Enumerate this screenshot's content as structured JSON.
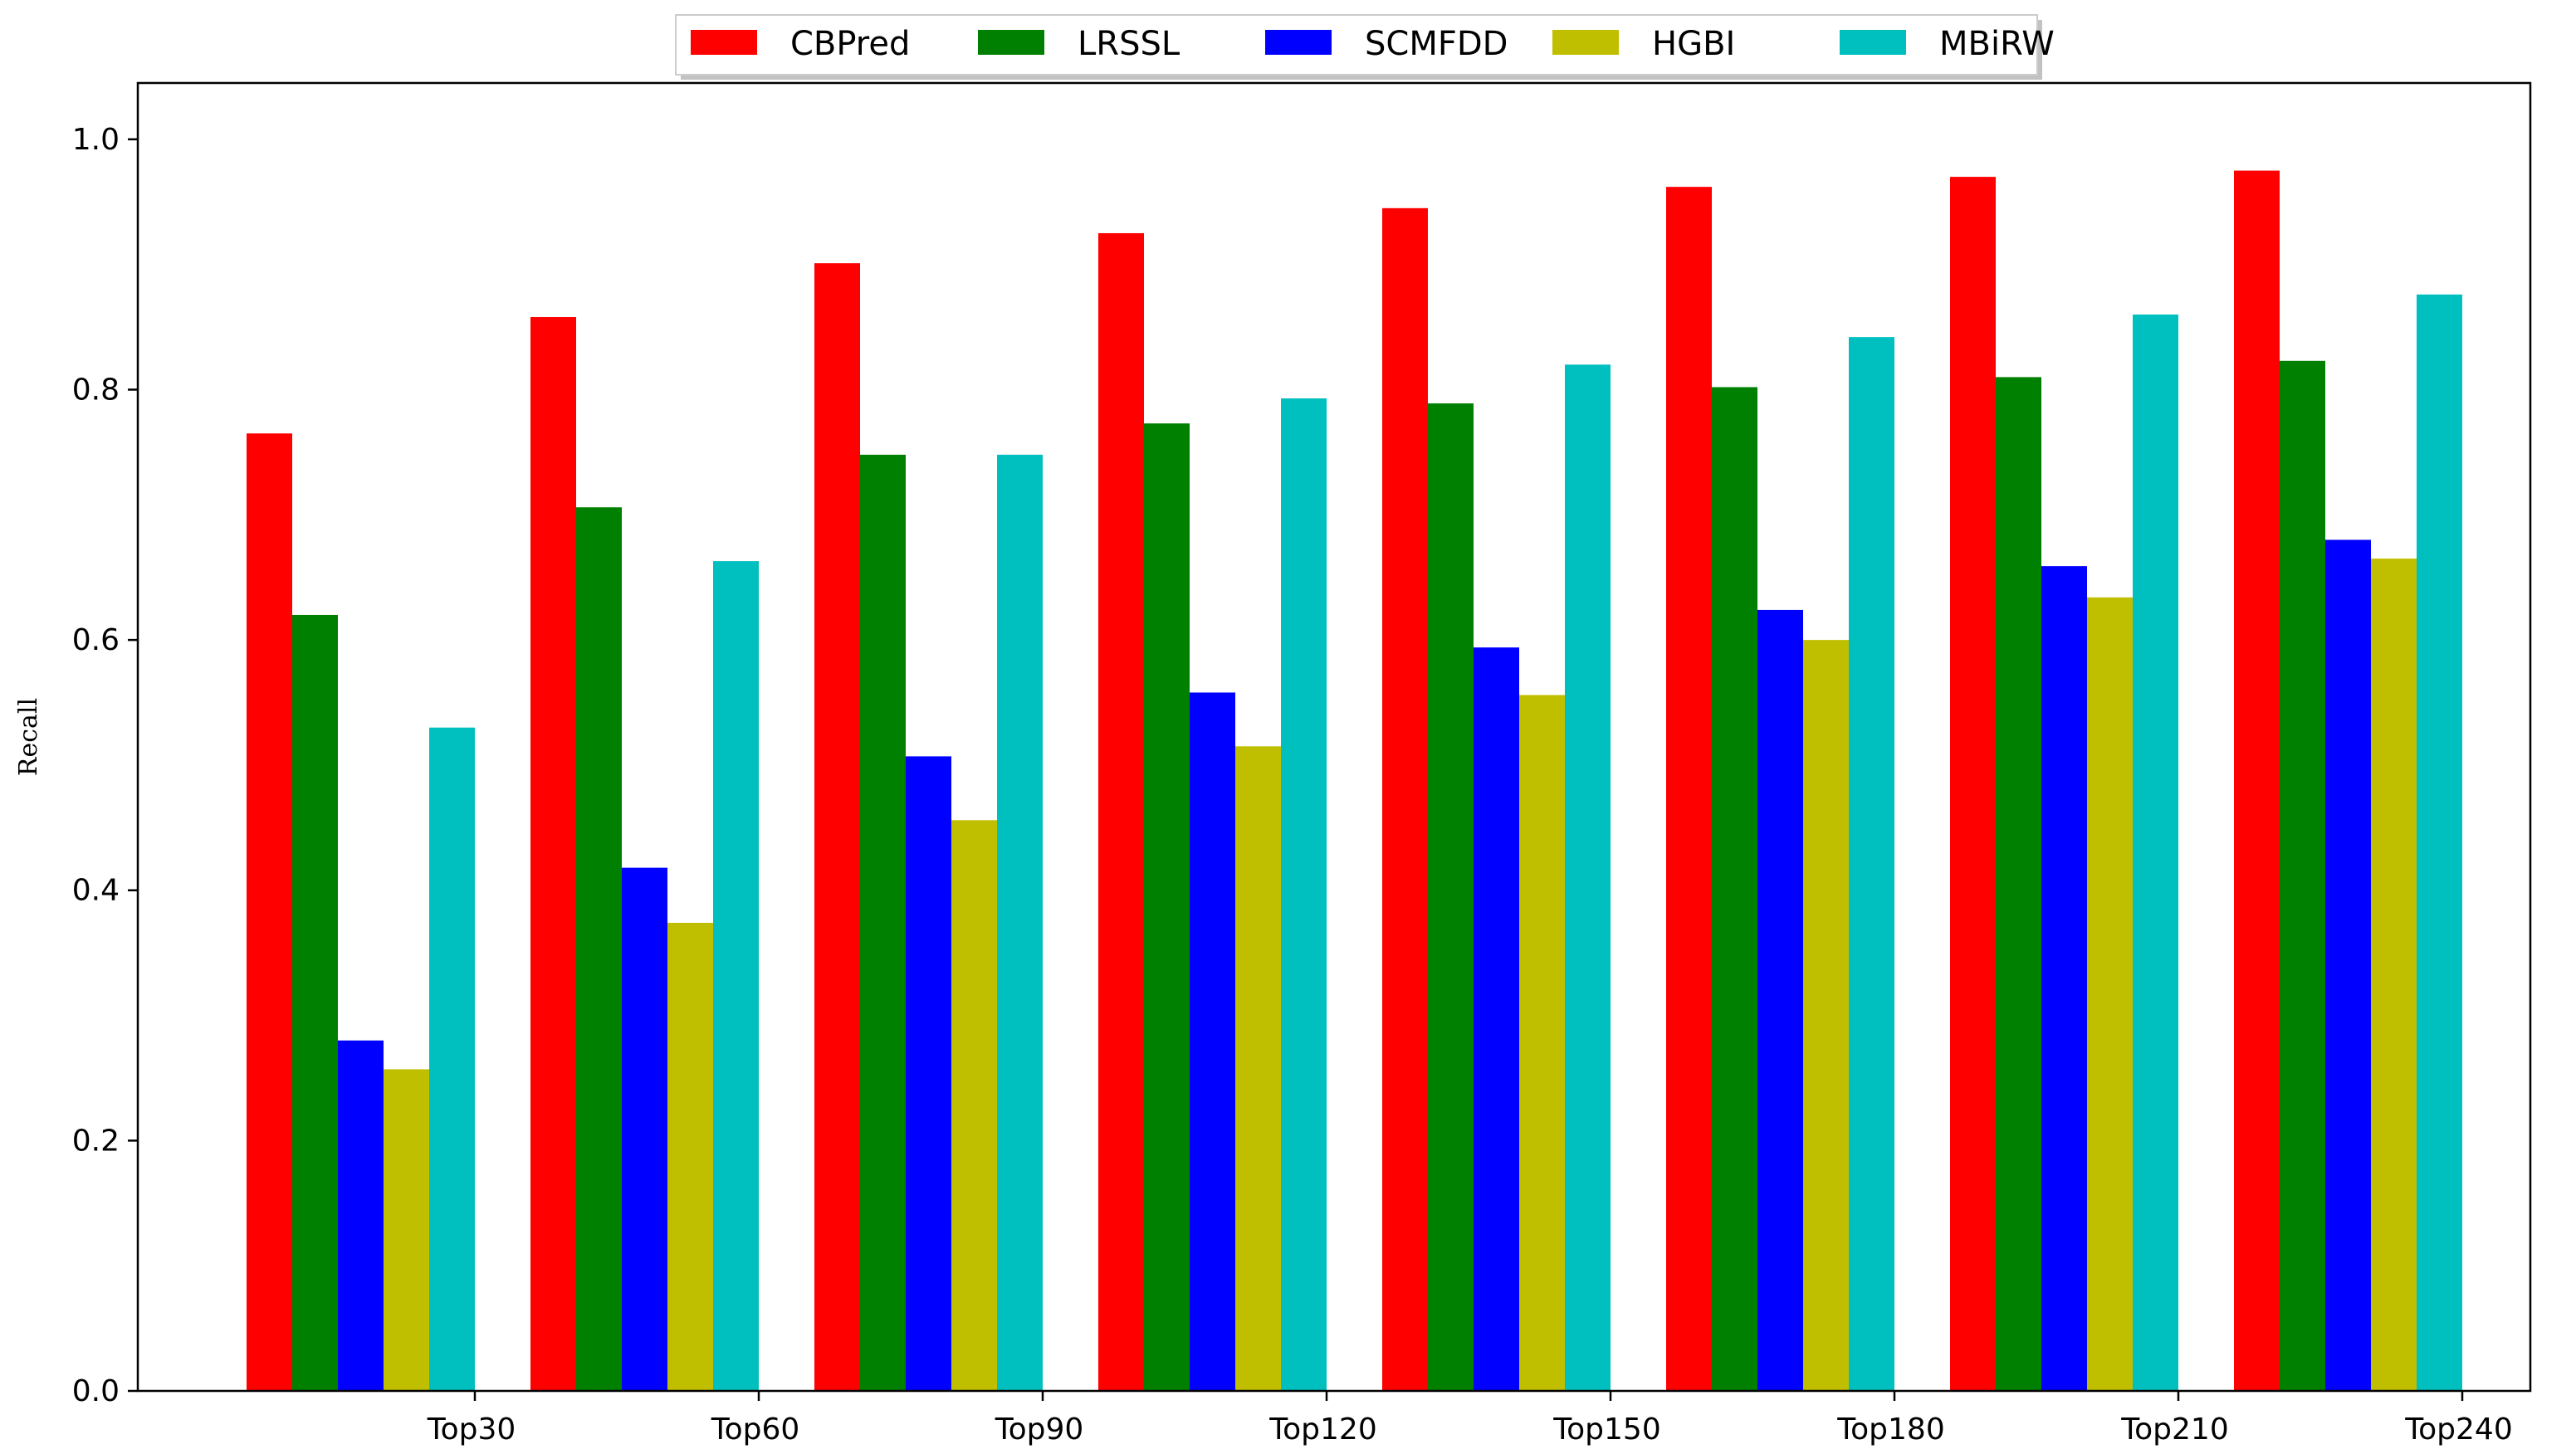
{
  "chart_data": {
    "type": "bar",
    "title": "",
    "xlabel": "",
    "ylabel": "Recall",
    "ylim": [
      0,
      1.0
    ],
    "yticks": [
      "0.0",
      "0.2",
      "0.4",
      "0.6",
      "0.8",
      "1.0"
    ],
    "categories": [
      "Top30",
      "Top60",
      "Top90",
      "Top120",
      "Top150",
      "Top180",
      "Top210",
      "Top240"
    ],
    "legend_position": "top-center",
    "grid": false,
    "series": [
      {
        "name": "CBPred",
        "color": "#ff0000",
        "values": [
          0.765,
          0.858,
          0.901,
          0.925,
          0.945,
          0.962,
          0.97,
          0.975
        ]
      },
      {
        "name": "LRSSL",
        "color": "#008000",
        "values": [
          0.62,
          0.706,
          0.748,
          0.773,
          0.789,
          0.802,
          0.81,
          0.823
        ]
      },
      {
        "name": "SCMFDD",
        "color": "#0000ff",
        "values": [
          0.28,
          0.418,
          0.507,
          0.558,
          0.594,
          0.624,
          0.659,
          0.68
        ]
      },
      {
        "name": "HGBI",
        "color": "#bfbf00",
        "values": [
          0.257,
          0.374,
          0.456,
          0.515,
          0.556,
          0.6,
          0.634,
          0.665
        ]
      },
      {
        "name": "MBiRW",
        "color": "#00bfbf",
        "values": [
          0.53,
          0.663,
          0.748,
          0.793,
          0.82,
          0.842,
          0.86,
          0.876
        ]
      }
    ]
  }
}
